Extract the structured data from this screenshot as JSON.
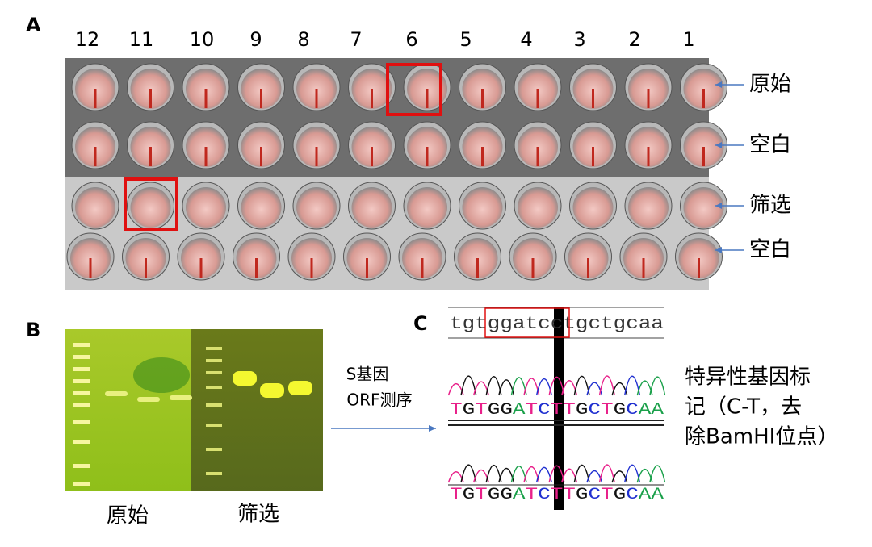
{
  "panels": {
    "a": "A",
    "b": "B",
    "c": "C"
  },
  "plate": {
    "columns": [
      "12",
      "11",
      "10",
      "9",
      "8",
      "7",
      "6",
      "5",
      "4",
      "3",
      "2",
      "1"
    ],
    "rows": [
      "原始",
      "空白",
      "筛选",
      "空白"
    ]
  },
  "gel": {
    "labels": [
      "原始",
      "筛选"
    ]
  },
  "arrow": {
    "line1": "S基因",
    "line2": "ORF测序"
  },
  "sequence": {
    "reference": "tgtggatcctgctgcaa",
    "trace1": "TGTGGATCTTGCTGCAA",
    "trace2": "TGTGGATCTTGCTGCAA"
  },
  "annotation": [
    "特异性基因标",
    "记（C-T，去",
    "除BamHI位点）"
  ]
}
